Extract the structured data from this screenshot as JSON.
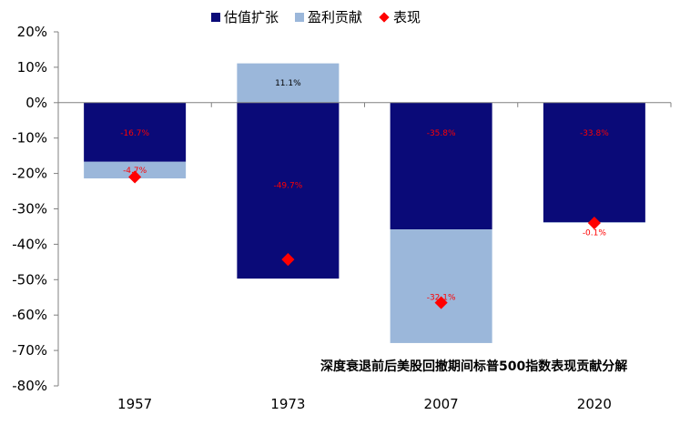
{
  "legend": {
    "valuation": "估值扩张",
    "earnings": "盈利贡献",
    "performance": "表现"
  },
  "colors": {
    "valuation": "#0a0a78",
    "earnings": "#9bb7da",
    "performance": "#ff0000"
  },
  "note": "深度衰退前后美股回撤期间标普500指数表现贡献分解",
  "chart_data": {
    "type": "bar",
    "stacked": true,
    "categories": [
      "1957",
      "1973",
      "2007",
      "2020"
    ],
    "series": [
      {
        "name": "估值扩张",
        "values": [
          -16.7,
          -49.7,
          -35.8,
          -33.8
        ]
      },
      {
        "name": "盈利贡献",
        "values": [
          -4.7,
          11.1,
          -32.1,
          -0.1
        ]
      },
      {
        "name": "表现",
        "type": "scatter",
        "values": [
          -21.0,
          -44.3,
          -56.5,
          -34.0
        ]
      }
    ],
    "bar_labels": {
      "valuation": [
        "-16.7%",
        "-49.7%",
        "-35.8%",
        "-33.8%"
      ],
      "earnings": [
        "-4.7%",
        "11.1%",
        "-32.1%",
        "-0.1%"
      ]
    },
    "yticks": [
      "20%",
      "10%",
      "0%",
      "-10%",
      "-20%",
      "-30%",
      "-40%",
      "-50%",
      "-60%",
      "-70%",
      "-80%"
    ],
    "ylim": [
      -80,
      20
    ],
    "legend_position": "top"
  }
}
